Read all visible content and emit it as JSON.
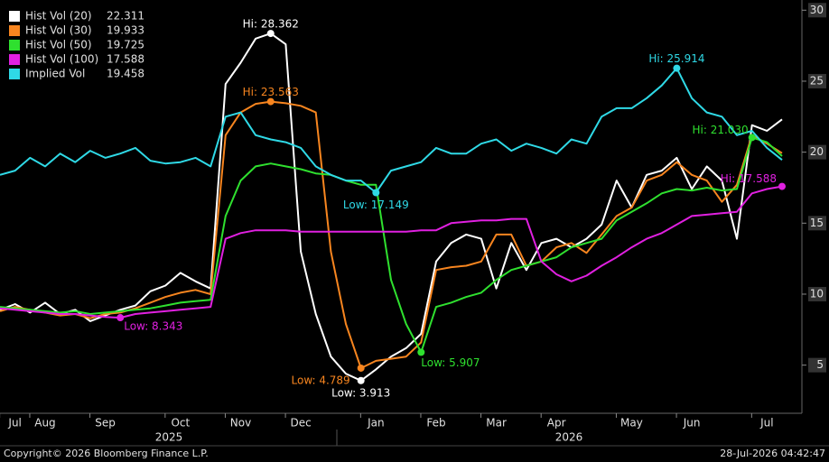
{
  "chart_data": {
    "type": "line",
    "categories": [
      null,
      "Jul",
      null,
      "Aug",
      null,
      null,
      null,
      "Sep",
      null,
      null,
      null,
      null,
      "Oct",
      null,
      null,
      null,
      "Nov",
      null,
      null,
      null,
      "Dec",
      null,
      null,
      null,
      null,
      "Jan",
      null,
      null,
      null,
      "Feb",
      null,
      null,
      null,
      "Mar",
      null,
      null,
      null,
      "Apr",
      null,
      null,
      null,
      null,
      "May",
      null,
      null,
      null,
      "Jun",
      null,
      null,
      null,
      null,
      "Jul",
      null
    ],
    "x_years": [
      "2025",
      "2026"
    ],
    "series": [
      {
        "name": "Hist Vol (20)",
        "color": "#ffffff",
        "hi_label": "Hi: 28.362",
        "lo_label": "Low: 3.913",
        "values": [
          8.9,
          9.3,
          8.7,
          9.4,
          8.6,
          8.9,
          8.1,
          8.5,
          8.9,
          9.2,
          10.2,
          10.6,
          11.5,
          10.9,
          10.4,
          24.8,
          26.3,
          28.0,
          28.362,
          27.6,
          13.0,
          8.6,
          5.6,
          4.4,
          3.913,
          4.7,
          5.6,
          6.2,
          7.2,
          12.3,
          13.6,
          14.2,
          13.9,
          10.4,
          13.6,
          11.7,
          13.6,
          13.9,
          13.3,
          13.9,
          14.9,
          18.0,
          16.1,
          18.4,
          18.7,
          19.6,
          17.4,
          19.0,
          18.0,
          13.9,
          21.9,
          21.5,
          22.311
        ]
      },
      {
        "name": "Hist Vol (30)",
        "color": "#f7851f",
        "hi_label": "Hi: 23.563",
        "lo_label": "Low: 4.789",
        "values": [
          8.8,
          9.1,
          8.9,
          8.7,
          8.5,
          8.6,
          8.3,
          8.6,
          8.7,
          9.0,
          9.4,
          9.8,
          10.1,
          10.3,
          10.0,
          21.2,
          22.8,
          23.4,
          23.563,
          23.45,
          23.26,
          22.8,
          13.0,
          7.9,
          4.789,
          5.3,
          5.45,
          5.6,
          6.6,
          11.7,
          11.9,
          12.0,
          12.3,
          14.2,
          14.2,
          12.0,
          12.3,
          13.3,
          13.6,
          12.9,
          14.2,
          15.5,
          16.1,
          18.0,
          18.4,
          19.3,
          18.4,
          18.0,
          16.5,
          17.7,
          21.2,
          20.6,
          19.933
        ]
      },
      {
        "name": "Hist Vol (50)",
        "color": "#2fe02f",
        "hi_label": "Hi: 21.030",
        "lo_label": "Low: 5.907",
        "values": [
          9.1,
          9.0,
          8.9,
          8.8,
          8.7,
          8.8,
          8.6,
          8.7,
          8.8,
          8.9,
          9.0,
          9.2,
          9.4,
          9.5,
          9.6,
          15.5,
          18.0,
          19.0,
          19.2,
          19.0,
          18.8,
          18.5,
          18.4,
          18.0,
          17.7,
          17.7,
          11.0,
          7.9,
          5.907,
          9.1,
          9.4,
          9.8,
          10.1,
          11.0,
          11.7,
          12.0,
          12.3,
          12.6,
          13.3,
          13.6,
          13.9,
          15.2,
          15.8,
          16.4,
          17.1,
          17.4,
          17.3,
          17.5,
          17.3,
          17.4,
          21.03,
          20.7,
          19.725
        ]
      },
      {
        "name": "Hist Vol (100)",
        "color": "#e020e0",
        "hi_label": "Hi: 17.588",
        "lo_label": "Low: 8.343",
        "values": [
          9.0,
          8.9,
          8.8,
          8.7,
          8.6,
          8.6,
          8.5,
          8.4,
          8.343,
          8.6,
          8.7,
          8.8,
          8.9,
          9.0,
          9.1,
          13.9,
          14.3,
          14.5,
          14.5,
          14.5,
          14.4,
          14.4,
          14.4,
          14.4,
          14.4,
          14.4,
          14.4,
          14.4,
          14.5,
          14.5,
          15.0,
          15.1,
          15.2,
          15.2,
          15.3,
          15.3,
          12.3,
          11.4,
          10.9,
          11.3,
          12.0,
          12.6,
          13.3,
          13.9,
          14.3,
          14.9,
          15.5,
          15.6,
          15.7,
          15.8,
          17.1,
          17.4,
          17.588
        ]
      },
      {
        "name": "Implied Vol",
        "color": "#2fd9e6",
        "hi_label": "Hi: 25.914",
        "lo_label": "Low: 17.149",
        "values": [
          18.4,
          18.7,
          19.6,
          19.0,
          19.9,
          19.3,
          20.1,
          19.6,
          19.9,
          20.3,
          19.4,
          19.2,
          19.3,
          19.6,
          19.0,
          22.5,
          22.8,
          21.2,
          20.9,
          20.7,
          20.3,
          19.0,
          18.4,
          18.0,
          18.0,
          17.149,
          18.7,
          19.0,
          19.3,
          20.3,
          19.9,
          19.9,
          20.6,
          20.9,
          20.1,
          20.6,
          20.3,
          19.9,
          20.9,
          20.6,
          22.5,
          23.1,
          23.1,
          23.8,
          24.7,
          25.914,
          23.8,
          22.8,
          22.5,
          21.2,
          21.5,
          20.3,
          19.458
        ]
      }
    ],
    "ylim": [
      1.8,
      30.4
    ],
    "yticks": [
      5,
      10,
      15,
      20,
      25,
      30
    ],
    "grid": false,
    "copyright": "Copyright© 2026 Bloomberg Finance L.P.",
    "timestamp": "28-Jul-2026 04:42:47"
  }
}
